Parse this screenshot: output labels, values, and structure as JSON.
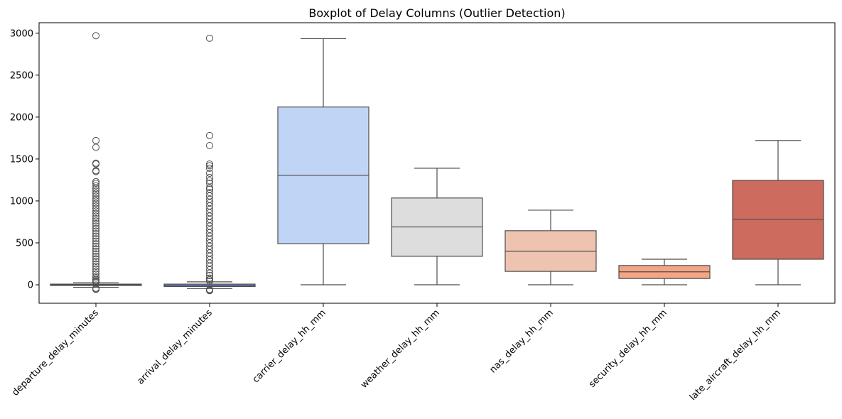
{
  "chart_data": {
    "type": "boxplot",
    "title": "Boxplot of Delay Columns (Outlier Detection)",
    "xlabel": "",
    "ylabel": "",
    "ylim": [
      -220,
      3125
    ],
    "yticks": [
      0,
      500,
      1000,
      1500,
      2000,
      2500,
      3000
    ],
    "grid": false,
    "legend": "none",
    "series": [
      {
        "name": "departure_delay_minutes",
        "color": "#3b4cc0",
        "whisker_low": -30,
        "q1": -8,
        "median": -2,
        "q3": 8,
        "whisker_high": 25,
        "outliers": [
          2970,
          1720,
          1640,
          1450,
          1440,
          1360,
          1350,
          1230,
          1210,
          1180,
          1150,
          1120,
          1090,
          1060,
          1030,
          1000,
          970,
          940,
          910,
          880,
          850,
          820,
          790,
          760,
          730,
          700,
          670,
          640,
          610,
          580,
          550,
          520,
          490,
          460,
          430,
          400,
          370,
          340,
          310,
          280,
          250,
          220,
          190,
          160,
          130,
          100,
          80,
          60,
          45,
          35,
          -40,
          -50,
          -55
        ]
      },
      {
        "name": "arrival_delay_minutes",
        "color": "#7396f5",
        "whisker_low": -45,
        "q1": -20,
        "median": -10,
        "q3": 8,
        "whisker_high": 35,
        "outliers": [
          2940,
          1780,
          1660,
          1440,
          1420,
          1390,
          1330,
          1280,
          1240,
          1210,
          1160,
          1140,
          1100,
          1060,
          1020,
          980,
          940,
          900,
          860,
          820,
          780,
          740,
          700,
          660,
          620,
          580,
          540,
          500,
          460,
          420,
          380,
          340,
          300,
          260,
          220,
          180,
          140,
          110,
          80,
          60,
          45,
          -55,
          -65,
          -70
        ]
      },
      {
        "name": "carrier_delay_hh_mm",
        "color": "#c0d4f5",
        "whisker_low": 0,
        "q1": 490,
        "median": 1305,
        "q3": 2120,
        "whisker_high": 2935,
        "outliers": []
      },
      {
        "name": "weather_delay_hh_mm",
        "color": "#dddddd",
        "whisker_low": 0,
        "q1": 340,
        "median": 690,
        "q3": 1035,
        "whisker_high": 1390,
        "outliers": []
      },
      {
        "name": "nas_delay_hh_mm",
        "color": "#eec4b0",
        "whisker_low": 0,
        "q1": 160,
        "median": 400,
        "q3": 645,
        "whisker_high": 890,
        "outliers": []
      },
      {
        "name": "security_delay_hh_mm",
        "color": "#f4a584",
        "whisker_low": 0,
        "q1": 75,
        "median": 155,
        "q3": 230,
        "whisker_high": 305,
        "outliers": []
      },
      {
        "name": "late_aircraft_delay_hh_mm",
        "color": "#cc6b5e",
        "whisker_low": 0,
        "q1": 305,
        "median": 780,
        "q3": 1245,
        "whisker_high": 1720,
        "outliers": []
      }
    ]
  }
}
